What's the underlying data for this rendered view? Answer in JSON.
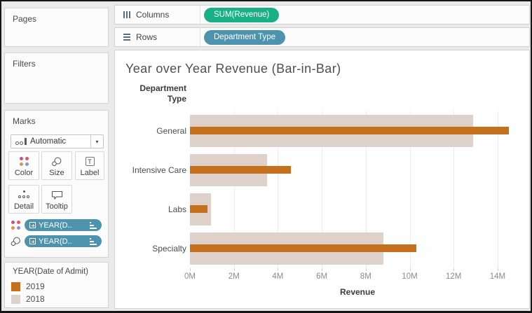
{
  "colors": {
    "measure_pill": "#17b185",
    "dimension_pill": "#4e93ad",
    "bar_2019": "#c4701d",
    "bar_2018": "#ddd1ca"
  },
  "shelves": {
    "columns": {
      "label": "Columns",
      "pill": "SUM(Revenue)"
    },
    "rows": {
      "label": "Rows",
      "pill": "Department Type"
    }
  },
  "cards": {
    "pages": {
      "title": "Pages"
    },
    "filters": {
      "title": "Filters"
    },
    "marks": {
      "title": "Marks",
      "mark_type": "Automatic",
      "buttons": [
        "Color",
        "Size",
        "Label",
        "Detail",
        "Tooltip"
      ],
      "pills": [
        "YEAR(D..",
        "YEAR(D.."
      ]
    }
  },
  "chart_data": {
    "type": "bar",
    "orientation": "horizontal",
    "style": "bar-in-bar",
    "title": "Year over Year Revenue (Bar-in-Bar)",
    "row_header": "Department Type",
    "categories": [
      "General",
      "Intensive Care",
      "Labs",
      "Specialty"
    ],
    "series": [
      {
        "name": "2018",
        "color": "#ddd1ca",
        "values": [
          12.9,
          3.5,
          0.95,
          8.8
        ]
      },
      {
        "name": "2019",
        "color": "#c4701d",
        "values": [
          14.5,
          4.6,
          0.8,
          10.3
        ]
      }
    ],
    "value_unit": "M",
    "xlabel": "Revenue",
    "x_ticks": [
      0,
      2,
      4,
      6,
      8,
      10,
      12,
      14
    ],
    "x_tick_labels": [
      "0M",
      "2M",
      "4M",
      "6M",
      "8M",
      "10M",
      "12M",
      "14M"
    ],
    "xlim": [
      0,
      15.25
    ],
    "grid": true,
    "legend_title": "YEAR(Date of Admit)",
    "legend_order": [
      "2019",
      "2018"
    ]
  }
}
